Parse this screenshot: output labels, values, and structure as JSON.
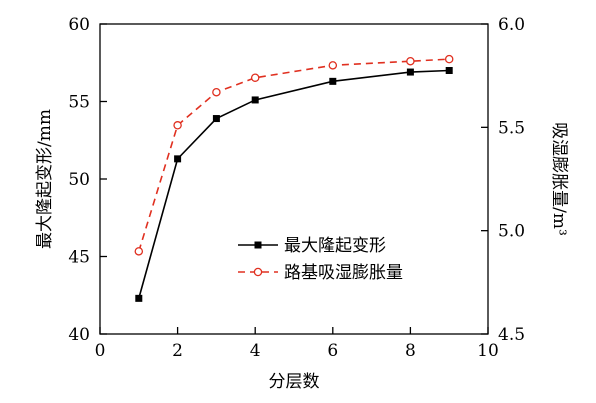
{
  "chart_data": {
    "type": "line",
    "title": "",
    "xlabel": "分层数",
    "ylabel_left": "最大隆起变形/mm",
    "ylabel_right": "吸湿膨胀量/m³",
    "xlim": [
      0,
      10
    ],
    "ylim_left": [
      40,
      60
    ],
    "ylim_right": [
      4.5,
      6.0
    ],
    "x_ticks": [
      0,
      2,
      4,
      6,
      8,
      10
    ],
    "y_ticks_left": [
      40,
      45,
      50,
      55,
      60
    ],
    "y_ticks_right": [
      4.5,
      5.0,
      5.5,
      6.0
    ],
    "y_tick_labels_right": [
      "4.5",
      "5.0",
      "5.5",
      "6.0"
    ],
    "grid": false,
    "legend_position": "center-right",
    "series": [
      {
        "name": "最大隆起变形",
        "axis": "left",
        "color": "#000000",
        "line_style": "solid",
        "marker": "filled-square",
        "x": [
          1,
          2,
          3,
          4,
          6,
          8,
          9
        ],
        "y": [
          42.3,
          51.3,
          53.9,
          55.1,
          56.3,
          56.9,
          57.0
        ]
      },
      {
        "name": "路基吸湿膨胀量",
        "axis": "right",
        "color": "#e03020",
        "line_style": "dashed",
        "marker": "open-circle",
        "x": [
          1,
          2,
          3,
          4,
          6,
          8,
          9
        ],
        "y": [
          4.9,
          5.51,
          5.67,
          5.74,
          5.8,
          5.82,
          5.83
        ]
      }
    ]
  }
}
